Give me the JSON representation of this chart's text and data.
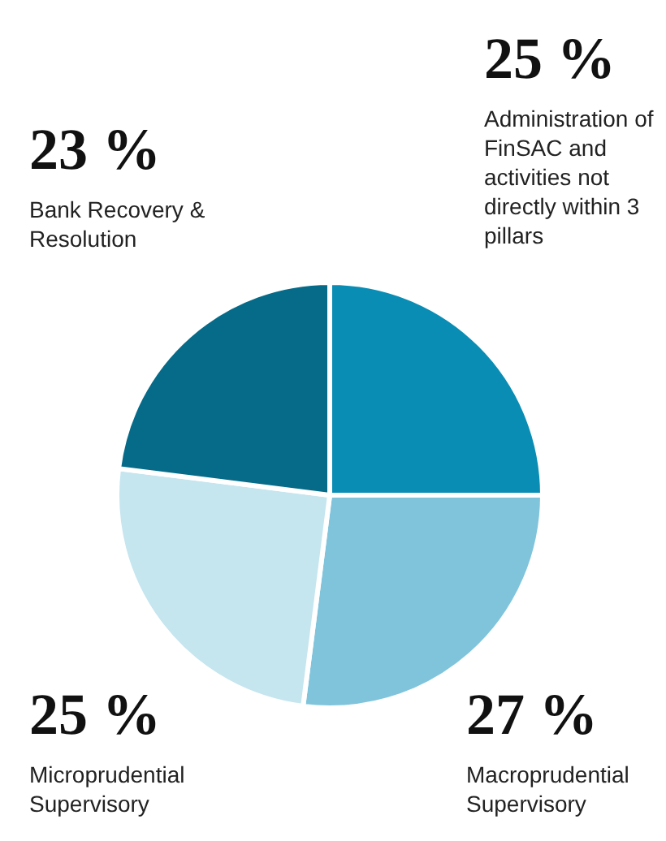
{
  "chart_data": {
    "type": "pie",
    "categories": [
      "Administration of FinSAC and activities not directly within 3 pillars",
      "Macroprudential Supervisory",
      "Microprudential Supervisory",
      "Bank Recovery & Resolution"
    ],
    "values": [
      25,
      27,
      25,
      23
    ],
    "colors": [
      "#0a8db4",
      "#80c4dc",
      "#c5e5ef",
      "#056b88"
    ],
    "value_labels": [
      "25 %",
      "27 %",
      "25 %",
      "23 %"
    ],
    "legend": false
  }
}
